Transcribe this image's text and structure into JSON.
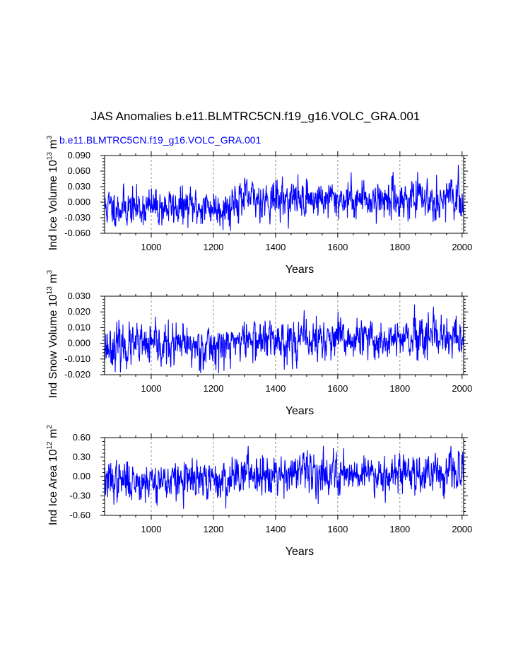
{
  "page": {
    "title": "JAS Anomalies b.e11.BLMTRC5CN.f19_g16.VOLC_GRA.001",
    "subtitle": "b.e11.BLMTRC5CN.f19_g16.VOLC_GRA.001",
    "series_color": "#0000ff"
  },
  "chart_data": [
    {
      "type": "line",
      "ylabel": "Ind Ice Volume 10",
      "ylabel_exp": "13",
      "ylabel_unit": "m",
      "ylabel_unit_exp": "3",
      "xlabel": "Years",
      "xlim": [
        850,
        2005
      ],
      "ylim": [
        -0.06,
        0.09
      ],
      "yticks": [
        -0.06,
        -0.03,
        0.0,
        0.03,
        0.06,
        0.09
      ],
      "ytick_labels": [
        "-0.060",
        "-0.030",
        "0.000",
        "0.030",
        "0.060",
        "0.090"
      ],
      "xticks": [
        1000,
        1200,
        1400,
        1600,
        1800,
        2000
      ],
      "xtick_labels": [
        "1000",
        "1200",
        "1400",
        "1600",
        "1800",
        "2000"
      ],
      "gridlines_x": [
        1000,
        1200,
        1400,
        1600,
        1800,
        2000
      ],
      "anomaly": {
        "pre1260_mean": -0.01,
        "post1260_mean": 0.006,
        "sd": 0.018,
        "max": 0.085,
        "min": -0.058,
        "seed": 11
      }
    },
    {
      "type": "line",
      "ylabel": "Ind Snow Volume 10",
      "ylabel_exp": "13",
      "ylabel_unit": "m",
      "ylabel_unit_exp": "3",
      "xlabel": "Years",
      "xlim": [
        850,
        2005
      ],
      "ylim": [
        -0.02,
        0.03
      ],
      "yticks": [
        -0.02,
        -0.01,
        0.0,
        0.01,
        0.02,
        0.03
      ],
      "ytick_labels": [
        "-0.020",
        "-0.010",
        "0.000",
        "0.010",
        "0.020",
        "0.030"
      ],
      "xticks": [
        1000,
        1200,
        1400,
        1600,
        1800,
        2000
      ],
      "xtick_labels": [
        "1000",
        "1200",
        "1400",
        "1600",
        "1800",
        "2000"
      ],
      "gridlines_x": [
        1000,
        1200,
        1400,
        1600,
        1800,
        2000
      ],
      "anomaly": {
        "pre1260_mean": -0.002,
        "post1260_mean": 0.002,
        "sd": 0.0065,
        "max": 0.027,
        "min": -0.019,
        "seed": 23
      }
    },
    {
      "type": "line",
      "ylabel": "Ind Ice Area 10",
      "ylabel_exp": "12",
      "ylabel_unit": "m",
      "ylabel_unit_exp": "2",
      "xlabel": "Years",
      "xlim": [
        850,
        2005
      ],
      "ylim": [
        -0.6,
        0.6
      ],
      "yticks": [
        -0.6,
        -0.3,
        0.0,
        0.3,
        0.6
      ],
      "ytick_labels": [
        "-0.60",
        "-0.30",
        "0.00",
        "0.30",
        "0.60"
      ],
      "xticks": [
        1000,
        1200,
        1400,
        1600,
        1800,
        2000
      ],
      "xtick_labels": [
        "1000",
        "1200",
        "1400",
        "1600",
        "1800",
        "2000"
      ],
      "gridlines_x": [
        1000,
        1200,
        1400,
        1600,
        1800,
        2000
      ],
      "anomaly": {
        "pre1260_mean": -0.07,
        "post1260_mean": 0.06,
        "sd": 0.15,
        "max": 0.47,
        "min": -0.52,
        "seed": 37
      }
    }
  ]
}
